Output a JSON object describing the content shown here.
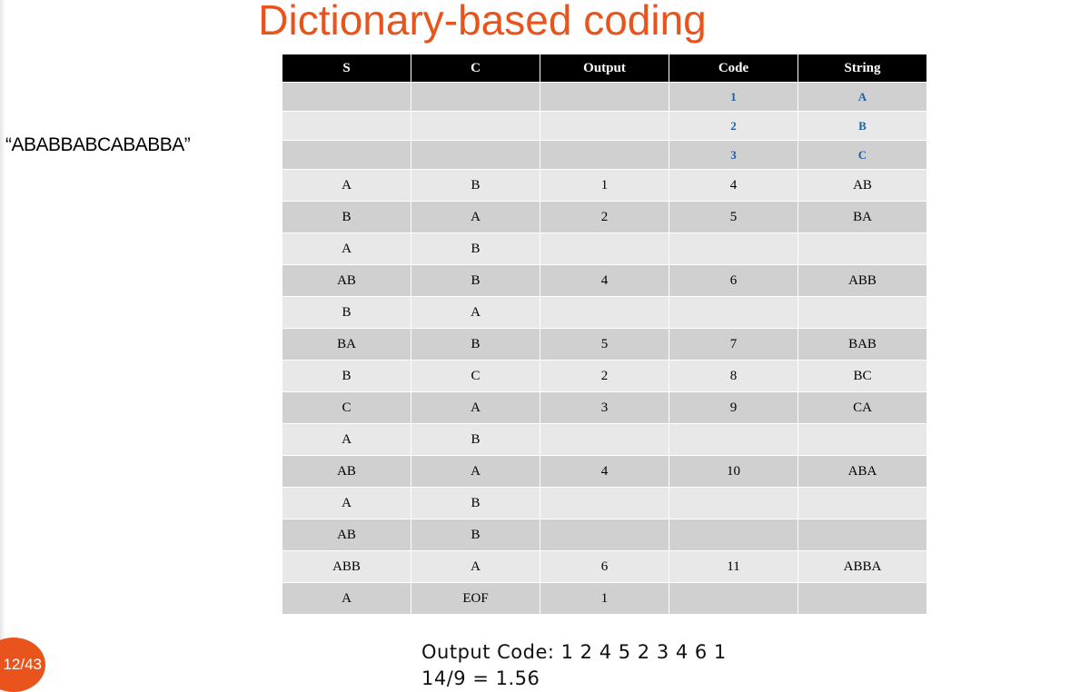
{
  "slide": {
    "title": "Dictionary-based coding",
    "input_string": "“ABABBABCABABBA”",
    "page_number": "12/43",
    "summary_line1": "Output Code: 1 2 4 5 2 3 4 6 1",
    "summary_line2": "14/9 = 1.56"
  },
  "table": {
    "headers": [
      "S",
      "C",
      "Output",
      "Code",
      "String"
    ],
    "init_rows": [
      [
        "",
        "",
        "",
        "1",
        "A"
      ],
      [
        "",
        "",
        "",
        "2",
        "B"
      ],
      [
        "",
        "",
        "",
        "3",
        "C"
      ]
    ],
    "rows": [
      [
        "A",
        "B",
        "1",
        "4",
        "AB"
      ],
      [
        "B",
        "A",
        "2",
        "5",
        "BA"
      ],
      [
        "A",
        "B",
        "",
        "",
        ""
      ],
      [
        "AB",
        "B",
        "4",
        "6",
        "ABB"
      ],
      [
        "B",
        "A",
        "",
        "",
        ""
      ],
      [
        "BA",
        "B",
        "5",
        "7",
        "BAB"
      ],
      [
        "B",
        "C",
        "2",
        "8",
        "BC"
      ],
      [
        "C",
        "A",
        "3",
        "9",
        "CA"
      ],
      [
        "A",
        "B",
        "",
        "",
        ""
      ],
      [
        "AB",
        "A",
        "4",
        "10",
        "ABA"
      ],
      [
        "A",
        "B",
        "",
        "",
        ""
      ],
      [
        "AB",
        "B",
        "",
        "",
        ""
      ],
      [
        "ABB",
        "A",
        "6",
        "11",
        "ABBA"
      ],
      [
        "A",
        "EOF",
        "1",
        "",
        ""
      ]
    ]
  },
  "colors": {
    "accent": "#e8541c",
    "header_bg": "#000000",
    "initial_dict_text": "#1f5fa8",
    "row_dark": "#d0d0d0",
    "row_light": "#e8e8e8"
  }
}
